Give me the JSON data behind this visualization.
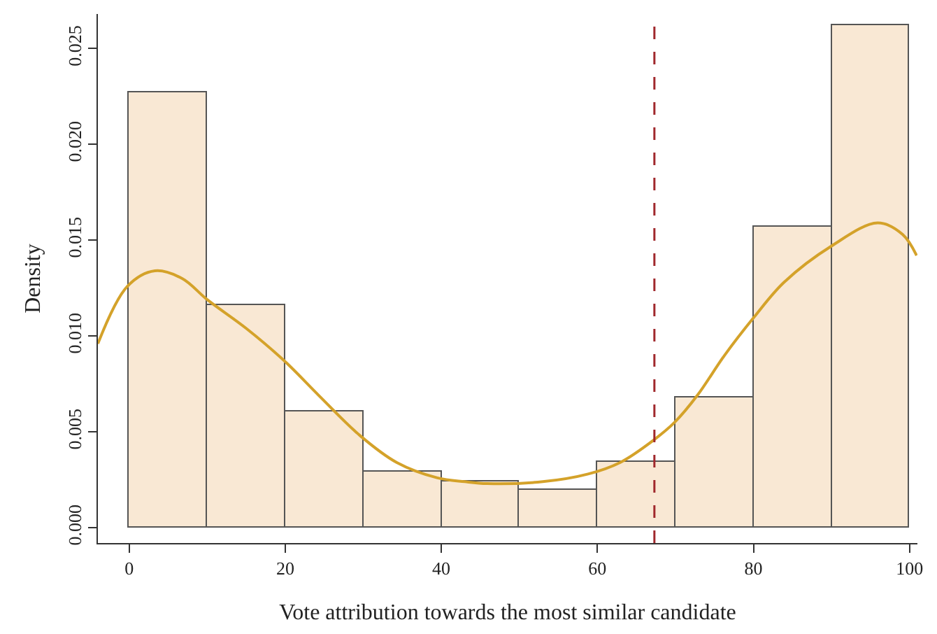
{
  "chart_data": {
    "type": "histogram",
    "xlabel": "Vote attribution towards the most similar candidate",
    "ylabel": "Density",
    "bins": [
      0,
      10,
      20,
      30,
      40,
      50,
      60,
      70,
      80,
      90,
      100
    ],
    "values": [
      0.0227,
      0.0116,
      0.0061,
      0.0029,
      0.0024,
      0.002,
      0.0034,
      0.0068,
      0.0157,
      0.0262
    ],
    "color": "#f9e8d4",
    "series": [
      {
        "type": "line",
        "color": "#d4a22a",
        "x": [
          -4.0,
          -0.2,
          3.3,
          6.8,
          10.0,
          15.0,
          19.9,
          24.3,
          29.6,
          34.3,
          39.5,
          43.0,
          45.9,
          53.0,
          58.8,
          62.9,
          67.3,
          69.9,
          72.8,
          76.3,
          80.1,
          83.9,
          90.0,
          95.9,
          99.1,
          100.9
        ],
        "values": [
          0.0096,
          0.0126,
          0.0134,
          0.013,
          0.0119,
          0.0104,
          0.0087,
          0.0069,
          0.0048,
          0.0034,
          0.0026,
          0.0024,
          0.0023,
          0.0024,
          0.0028,
          0.0034,
          0.0046,
          0.0055,
          0.0069,
          0.009,
          0.011,
          0.0128,
          0.0147,
          0.0159,
          0.0153,
          0.0142
        ]
      }
    ],
    "ref_lines": [
      {
        "axis": "x",
        "value": 67.3,
        "color": "#a0282c",
        "line_style": "dashed"
      }
    ],
    "xlim": [
      -4,
      101
    ],
    "xticks": [
      0,
      20,
      40,
      60,
      80,
      100
    ],
    "ylim": [
      -0.0008,
      0.0268
    ],
    "yticks": [
      {
        "value": 0,
        "label": "0.000"
      },
      0.005,
      {
        "value": 0.01,
        "label": "0.010"
      },
      0.015,
      {
        "value": 0.02,
        "label": "0.020"
      },
      0.025
    ]
  }
}
